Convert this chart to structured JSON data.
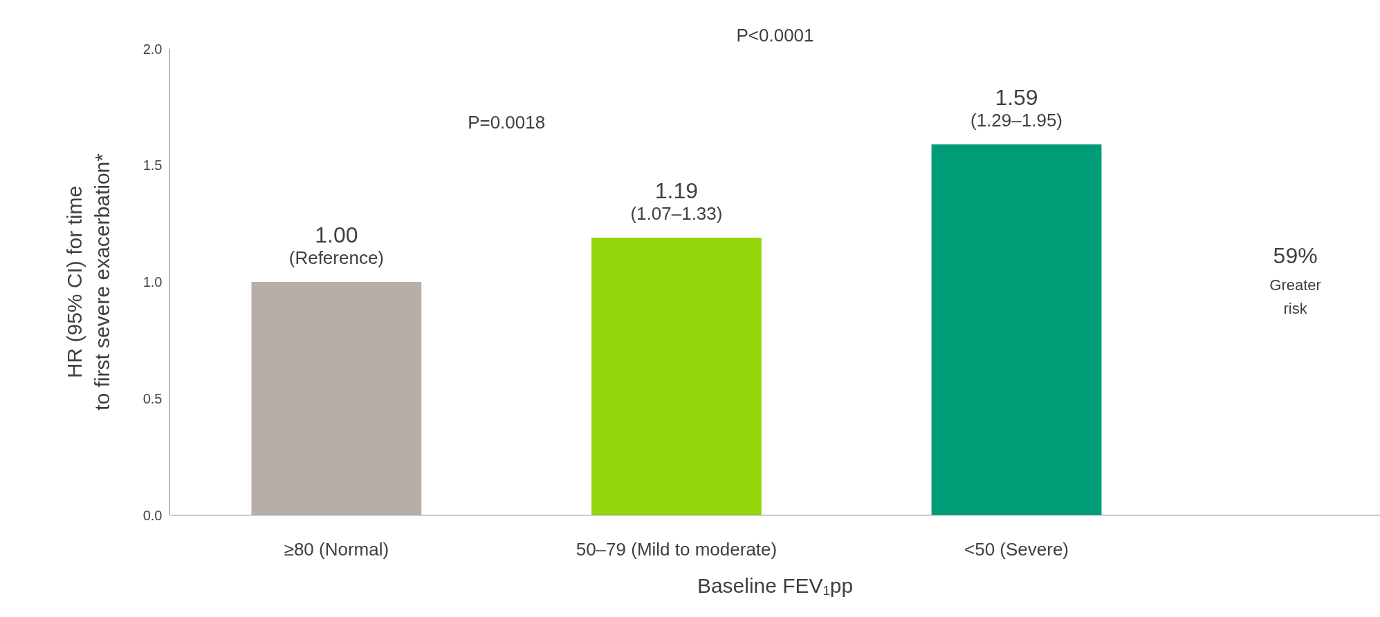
{
  "chart_data": {
    "type": "bar",
    "xlabel": "Baseline FEV₁pp",
    "ylabel": "HR (95% CI) for time to first severe exacerbation*",
    "categories": [
      "≥80 (Normal)",
      "50–79 (Mild to moderate)",
      "<50 (Severe)"
    ],
    "values": [
      1.0,
      1.19,
      1.59
    ],
    "colors": [
      "#b7aea9",
      "#94d60a",
      "#009b77"
    ],
    "value_labels": [
      "1.00",
      "1.19",
      "1.59"
    ],
    "ylim": [
      0,
      2.0
    ],
    "yticks": [
      {
        "value": 0,
        "label": "0.0"
      },
      0.5,
      {
        "value": 1,
        "label": "1.0"
      },
      1.5,
      {
        "value": 2,
        "label": "2.0"
      }
    ],
    "grid": false,
    "annotations": [
      {
        "text": "(Reference)",
        "x": "≥80 (Normal)",
        "y": 1.0
      },
      {
        "text": "(1.07–1.33)",
        "x": "50–79 (Mild to moderate)",
        "y": 1.19
      },
      {
        "text": "(1.29–1.95)",
        "x": "<50 (Severe)",
        "y": 1.59
      },
      "P=0.0018",
      "P<0.0001",
      "59%",
      "Greater risk"
    ]
  }
}
